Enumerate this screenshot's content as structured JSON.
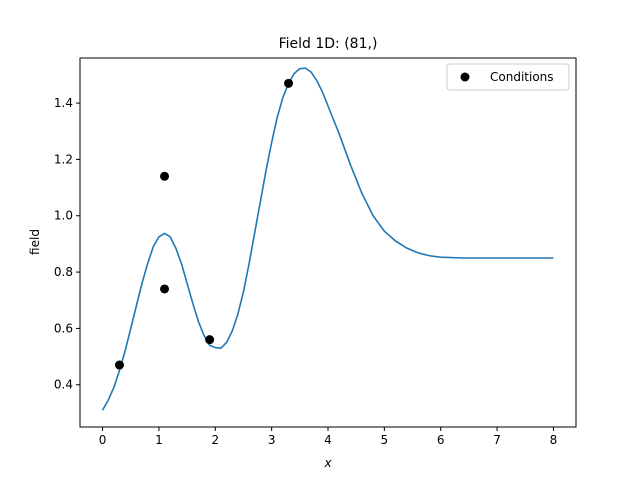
{
  "chart_data": {
    "type": "line",
    "title": "Field 1D: (81,)",
    "xlabel": "x",
    "ylabel": "field",
    "xlim": [
      -0.4,
      8.4
    ],
    "ylim": [
      0.25,
      1.56
    ],
    "x_ticks": [
      0,
      1,
      2,
      3,
      4,
      5,
      6,
      7,
      8
    ],
    "y_ticks": [
      0.4,
      0.6,
      0.8,
      1.0,
      1.2,
      1.4
    ],
    "y_tick_labels": [
      "0.4",
      "0.6",
      "0.8",
      "1.0",
      "1.2",
      "1.4"
    ],
    "grid": false,
    "legend_position": "top-right",
    "series": [
      {
        "type": "line",
        "color": "#1f77b4",
        "points": [
          [
            0.0,
            0.31
          ],
          [
            0.1,
            0.345
          ],
          [
            0.2,
            0.39
          ],
          [
            0.3,
            0.45
          ],
          [
            0.4,
            0.52
          ],
          [
            0.5,
            0.6
          ],
          [
            0.6,
            0.68
          ],
          [
            0.7,
            0.76
          ],
          [
            0.8,
            0.83
          ],
          [
            0.9,
            0.89
          ],
          [
            1.0,
            0.925
          ],
          [
            1.1,
            0.937
          ],
          [
            1.2,
            0.925
          ],
          [
            1.3,
            0.885
          ],
          [
            1.4,
            0.83
          ],
          [
            1.5,
            0.76
          ],
          [
            1.6,
            0.69
          ],
          [
            1.7,
            0.625
          ],
          [
            1.8,
            0.575
          ],
          [
            1.9,
            0.54
          ],
          [
            2.0,
            0.532
          ],
          [
            2.1,
            0.53
          ],
          [
            2.2,
            0.55
          ],
          [
            2.3,
            0.59
          ],
          [
            2.4,
            0.65
          ],
          [
            2.5,
            0.73
          ],
          [
            2.6,
            0.83
          ],
          [
            2.7,
            0.94
          ],
          [
            2.8,
            1.05
          ],
          [
            2.9,
            1.16
          ],
          [
            3.0,
            1.26
          ],
          [
            3.1,
            1.35
          ],
          [
            3.2,
            1.42
          ],
          [
            3.3,
            1.47
          ],
          [
            3.4,
            1.505
          ],
          [
            3.5,
            1.522
          ],
          [
            3.6,
            1.524
          ],
          [
            3.7,
            1.51
          ],
          [
            3.8,
            1.48
          ],
          [
            3.9,
            1.44
          ],
          [
            4.0,
            1.39
          ],
          [
            4.2,
            1.29
          ],
          [
            4.4,
            1.18
          ],
          [
            4.6,
            1.08
          ],
          [
            4.8,
            1.0
          ],
          [
            5.0,
            0.945
          ],
          [
            5.2,
            0.91
          ],
          [
            5.4,
            0.885
          ],
          [
            5.6,
            0.868
          ],
          [
            5.8,
            0.858
          ],
          [
            6.0,
            0.853
          ],
          [
            6.4,
            0.85
          ],
          [
            7.0,
            0.85
          ],
          [
            8.0,
            0.85
          ]
        ]
      },
      {
        "type": "scatter",
        "name": "Conditions",
        "color": "#000000",
        "points": [
          [
            0.3,
            0.47
          ],
          [
            1.1,
            1.14
          ],
          [
            1.1,
            0.74
          ],
          [
            1.9,
            0.56
          ],
          [
            3.3,
            1.47
          ]
        ]
      }
    ]
  }
}
